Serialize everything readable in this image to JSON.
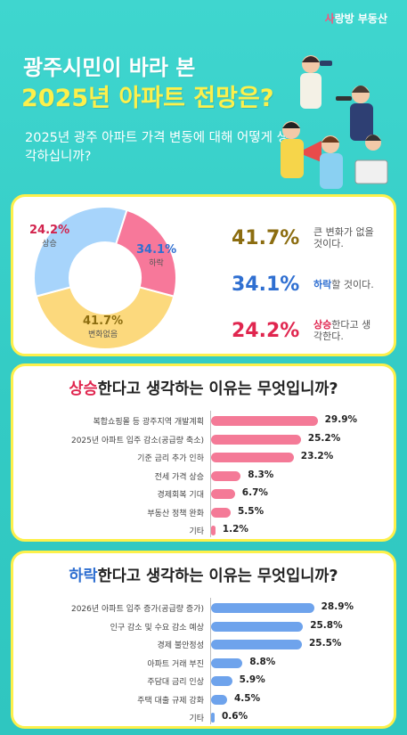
{
  "brand": {
    "prefix": "사",
    "rest": "랑방 부동산"
  },
  "headline": {
    "line1": "광주시민이 바라 본",
    "line2": "2025년 아파트 전망은?"
  },
  "question": "2025년 광주 아파트 가격 변동에 대해 어떻게 생각하십니까?",
  "colors": {
    "background": "#38cfc8",
    "card_border": "#fdf04b",
    "rise": "#e0264f",
    "fall": "#2f6fd1",
    "nochange": "#8c6d10",
    "rise_bar": "#f47a97",
    "fall_bar": "#6ea3ec",
    "donut_nochange": "#fcd97d",
    "donut_fall": "#a7d4fb",
    "donut_rise": "#f7789a"
  },
  "summary": [
    {
      "pct": "41.7%",
      "desc_hl": "",
      "desc": "큰 변화가 없을 것이다.",
      "color": "#8c6d10"
    },
    {
      "pct": "34.1%",
      "desc_hl": "하락",
      "desc": "할 것이다.",
      "color": "#2f6fd1"
    },
    {
      "pct": "24.2%",
      "desc_hl": "상승",
      "desc": "한다고 생각한다.",
      "color": "#e0264f"
    }
  ],
  "donut_labels": {
    "rise": {
      "pct": "24.2%",
      "cap": "상승"
    },
    "fall": {
      "pct": "34.1%",
      "cap": "하락"
    },
    "nochange": {
      "pct": "41.7%",
      "cap": "변화없음"
    }
  },
  "rise_section": {
    "title_hl": "상승",
    "title_rest": "한다고 생각하는 이유는 무엇입니까?"
  },
  "fall_section": {
    "title_hl": "하락",
    "title_rest": "한다고 생각하는 이유는 무엇입니까?"
  },
  "chart_data": [
    {
      "type": "pie",
      "categories": [
        "변화없음",
        "하락",
        "상승"
      ],
      "values": [
        41.7,
        34.1,
        24.2
      ]
    },
    {
      "type": "bar",
      "orientation": "horizontal",
      "categories": [
        "복합쇼핑몰 등 광주지역 개발계획",
        "2025년 아파트 입주 감소(공급량 축소)",
        "기준 금리 추가 인하",
        "전세 가격 상승",
        "경제회복 기대",
        "부동산 정책 완화",
        "기타"
      ],
      "values": [
        29.9,
        25.2,
        23.2,
        8.3,
        6.7,
        5.5,
        1.2
      ],
      "labels": [
        "29.9%",
        "25.2%",
        "23.2%",
        "8.3%",
        "6.7%",
        "5.5%",
        "1.2%"
      ]
    },
    {
      "type": "bar",
      "orientation": "horizontal",
      "categories": [
        "2026년 아파트 입주 증가(공급량 증가)",
        "인구 감소 및 수요 감소 예상",
        "경제 불안정성",
        "아파트 거래 부진",
        "주담대 금리 인상",
        "주택 대출 규제 강화",
        "기타"
      ],
      "values": [
        28.9,
        25.8,
        25.5,
        8.8,
        5.9,
        4.5,
        0.6
      ],
      "labels": [
        "28.9%",
        "25.8%",
        "25.5%",
        "8.8%",
        "5.9%",
        "4.5%",
        "0.6%"
      ]
    }
  ]
}
